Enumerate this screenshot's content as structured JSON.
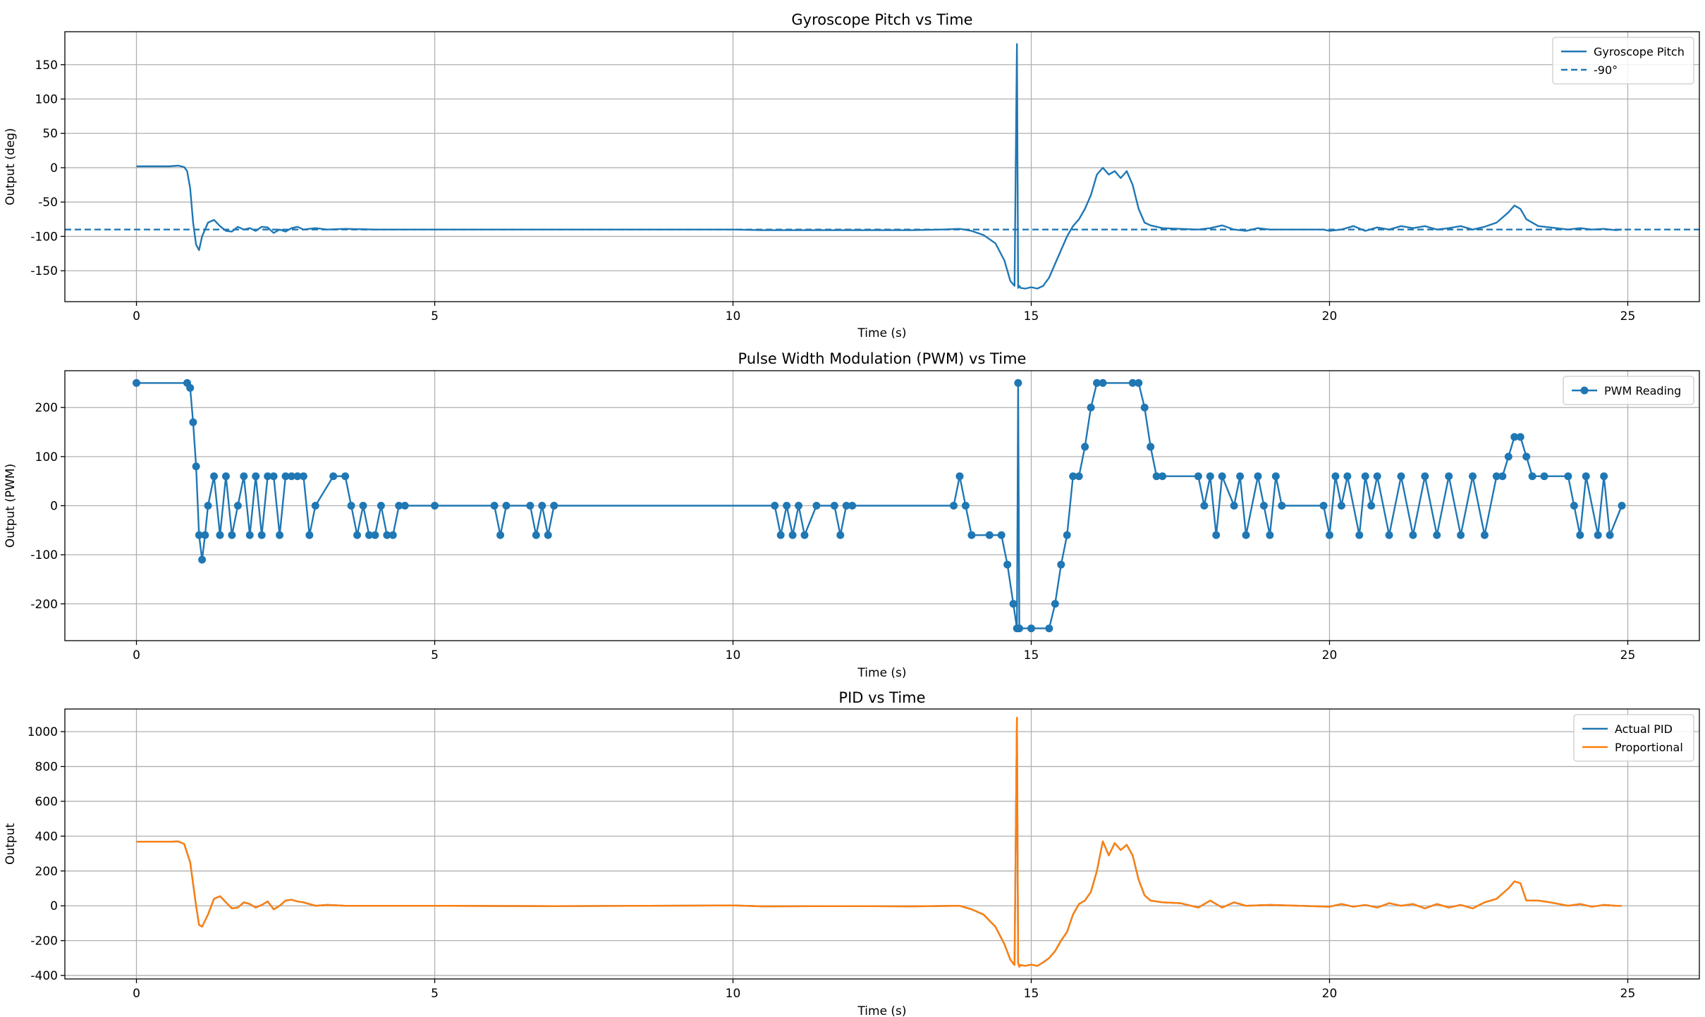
{
  "figure": {
    "background": "#ffffff"
  },
  "chart_data": [
    {
      "type": "line",
      "title": "Gyroscope Pitch vs Time",
      "xlabel": "Time (s)",
      "ylabel": "Output (deg)",
      "xlim": [
        -1.2,
        26.2
      ],
      "ylim": [
        -195,
        198
      ],
      "xticks": [
        0,
        5,
        10,
        15,
        20,
        25
      ],
      "yticks": [
        -150,
        -100,
        -50,
        0,
        50,
        100,
        150
      ],
      "grid": true,
      "legend_position": "top-right",
      "series": [
        {
          "name": "Gyroscope Pitch",
          "color": "#1f77b4",
          "style": "solid",
          "x": [
            0.0,
            0.3,
            0.55,
            0.7,
            0.8,
            0.85,
            0.9,
            0.95,
            1.0,
            1.05,
            1.1,
            1.2,
            1.3,
            1.4,
            1.5,
            1.6,
            1.7,
            1.8,
            1.9,
            2.0,
            2.1,
            2.2,
            2.3,
            2.4,
            2.5,
            2.6,
            2.7,
            2.8,
            3.0,
            3.2,
            3.5,
            4.0,
            5.0,
            6.0,
            7.0,
            8.0,
            9.0,
            10.0,
            10.5,
            11.0,
            12.0,
            13.0,
            13.5,
            13.8,
            14.0,
            14.2,
            14.4,
            14.55,
            14.65,
            14.72,
            14.76,
            14.78,
            14.8,
            14.82,
            14.9,
            15.0,
            15.1,
            15.2,
            15.3,
            15.4,
            15.5,
            15.6,
            15.7,
            15.8,
            15.9,
            16.0,
            16.1,
            16.2,
            16.3,
            16.4,
            16.5,
            16.6,
            16.7,
            16.8,
            16.9,
            17.0,
            17.2,
            17.5,
            17.8,
            18.0,
            18.2,
            18.4,
            18.6,
            18.8,
            19.0,
            19.5,
            19.9,
            20.0,
            20.2,
            20.4,
            20.6,
            20.8,
            21.0,
            21.2,
            21.4,
            21.6,
            21.8,
            22.0,
            22.2,
            22.4,
            22.6,
            22.8,
            23.0,
            23.1,
            23.2,
            23.3,
            23.5,
            23.7,
            24.0,
            24.2,
            24.4,
            24.6,
            24.8,
            24.9
          ],
          "values": [
            2,
            2,
            2,
            3,
            1,
            -5,
            -30,
            -80,
            -112,
            -120,
            -100,
            -80,
            -76,
            -85,
            -92,
            -93,
            -86,
            -90,
            -88,
            -92,
            -86,
            -87,
            -95,
            -90,
            -93,
            -88,
            -86,
            -90,
            -88,
            -90,
            -89,
            -90,
            -90,
            -90,
            -90,
            -90,
            -90,
            -90,
            -91,
            -91,
            -91,
            -91,
            -90,
            -89,
            -92,
            -98,
            -110,
            -135,
            -165,
            -172,
            180,
            -175,
            -172,
            -175,
            -176,
            -174,
            -176,
            -172,
            -160,
            -140,
            -120,
            -100,
            -85,
            -75,
            -60,
            -40,
            -10,
            0,
            -10,
            -5,
            -15,
            -5,
            -25,
            -60,
            -80,
            -84,
            -88,
            -89,
            -90,
            -88,
            -84,
            -90,
            -92,
            -88,
            -90,
            -90,
            -90,
            -92,
            -90,
            -85,
            -92,
            -87,
            -90,
            -85,
            -88,
            -85,
            -90,
            -88,
            -85,
            -90,
            -86,
            -80,
            -65,
            -55,
            -60,
            -75,
            -85,
            -87,
            -90,
            -88,
            -90,
            -89,
            -91,
            -90
          ]
        },
        {
          "name": "-90°",
          "color": "#1f77b4",
          "style": "dashed",
          "x": [
            -1.2,
            26.2
          ],
          "values": [
            -90,
            -90
          ]
        }
      ]
    },
    {
      "type": "line",
      "title": "Pulse Width Modulation (PWM) vs Time",
      "xlabel": "Time (s)",
      "ylabel": "Output (PWM)",
      "xlim": [
        -1.2,
        26.2
      ],
      "ylim": [
        -275,
        275
      ],
      "xticks": [
        0,
        5,
        10,
        15,
        20,
        25
      ],
      "yticks": [
        -200,
        -100,
        0,
        100,
        200
      ],
      "grid": true,
      "legend_position": "top-right",
      "series": [
        {
          "name": "PWM Reading",
          "color": "#1f77b4",
          "marker": "circle",
          "x": [
            0.0,
            0.85,
            0.9,
            0.95,
            1.0,
            1.05,
            1.1,
            1.15,
            1.2,
            1.3,
            1.4,
            1.5,
            1.6,
            1.7,
            1.8,
            1.9,
            2.0,
            2.1,
            2.2,
            2.3,
            2.4,
            2.5,
            2.6,
            2.7,
            2.8,
            2.9,
            3.0,
            3.3,
            3.5,
            3.6,
            3.7,
            3.8,
            3.9,
            4.0,
            4.1,
            4.2,
            4.3,
            4.4,
            4.5,
            5.0,
            6.0,
            6.1,
            6.2,
            6.6,
            6.7,
            6.8,
            6.9,
            7.0,
            10.7,
            10.8,
            10.9,
            11.0,
            11.1,
            11.2,
            11.4,
            11.7,
            11.8,
            11.9,
            12.0,
            13.7,
            13.8,
            13.9,
            14.0,
            14.3,
            14.5,
            14.6,
            14.7,
            14.76,
            14.78,
            14.8,
            15.0,
            15.3,
            15.4,
            15.5,
            15.6,
            15.7,
            15.8,
            15.9,
            16.0,
            16.1,
            16.2,
            16.7,
            16.8,
            16.9,
            17.0,
            17.1,
            17.2,
            17.8,
            17.9,
            18.0,
            18.1,
            18.2,
            18.4,
            18.5,
            18.6,
            18.8,
            18.9,
            19.0,
            19.1,
            19.2,
            19.9,
            20.0,
            20.1,
            20.2,
            20.3,
            20.5,
            20.6,
            20.7,
            20.8,
            21.0,
            21.2,
            21.4,
            21.6,
            21.8,
            22.0,
            22.2,
            22.4,
            22.6,
            22.8,
            22.9,
            23.0,
            23.1,
            23.2,
            23.3,
            23.4,
            23.6,
            24.0,
            24.1,
            24.2,
            24.3,
            24.5,
            24.6,
            24.7,
            24.9
          ],
          "values": [
            250,
            250,
            240,
            170,
            80,
            -60,
            -110,
            -60,
            0,
            60,
            -60,
            60,
            -60,
            0,
            60,
            -60,
            60,
            -60,
            60,
            60,
            -60,
            60,
            60,
            60,
            60,
            -60,
            0,
            60,
            60,
            0,
            -60,
            0,
            -60,
            -60,
            0,
            -60,
            -60,
            0,
            0,
            0,
            0,
            -60,
            0,
            0,
            -60,
            0,
            -60,
            0,
            0,
            -60,
            0,
            -60,
            0,
            -60,
            0,
            0,
            -60,
            0,
            0,
            0,
            60,
            0,
            -60,
            -60,
            -60,
            -120,
            -200,
            -250,
            250,
            -250,
            -250,
            -250,
            -200,
            -120,
            -60,
            60,
            60,
            120,
            200,
            250,
            250,
            250,
            250,
            200,
            120,
            60,
            60,
            60,
            0,
            60,
            -60,
            60,
            0,
            60,
            -60,
            60,
            0,
            -60,
            60,
            0,
            0,
            -60,
            60,
            0,
            60,
            -60,
            60,
            0,
            60,
            -60,
            60,
            -60,
            60,
            -60,
            60,
            -60,
            60,
            -60,
            60,
            60,
            100,
            140,
            140,
            100,
            60,
            60,
            60,
            0,
            -60,
            60,
            -60,
            60,
            -60,
            0
          ]
        }
      ]
    },
    {
      "type": "line",
      "title": "PID vs Time",
      "xlabel": "Time (s)",
      "ylabel": "Output",
      "xlim": [
        -1.2,
        26.2
      ],
      "ylim": [
        -420,
        1130
      ],
      "xticks": [
        0,
        5,
        10,
        15,
        20,
        25
      ],
      "yticks": [
        -400,
        -200,
        0,
        200,
        400,
        600,
        800,
        1000
      ],
      "grid": true,
      "legend_position": "top-right",
      "series": [
        {
          "name": "Actual PID",
          "color": "#1f77b4",
          "x": [
            0.0,
            0.55,
            0.7,
            0.8,
            0.9,
            1.0,
            1.05,
            1.1,
            1.2,
            1.3,
            1.4,
            1.5,
            1.6,
            1.7,
            1.8,
            1.9,
            2.0,
            2.1,
            2.2,
            2.3,
            2.4,
            2.5,
            2.6,
            2.7,
            2.8,
            3.0,
            3.2,
            3.5,
            4.0,
            5.0,
            7.0,
            10.0,
            10.5,
            12.0,
            13.0,
            13.8,
            14.0,
            14.2,
            14.4,
            14.55,
            14.65,
            14.72,
            14.76,
            14.78,
            14.8,
            14.82,
            14.9,
            15.0,
            15.1,
            15.2,
            15.3,
            15.4,
            15.5,
            15.6,
            15.7,
            15.8,
            15.9,
            16.0,
            16.1,
            16.2,
            16.3,
            16.4,
            16.5,
            16.6,
            16.7,
            16.8,
            16.9,
            17.0,
            17.2,
            17.5,
            17.8,
            18.0,
            18.2,
            18.4,
            18.6,
            19.0,
            19.5,
            20.0,
            20.2,
            20.4,
            20.6,
            20.8,
            21.0,
            21.2,
            21.4,
            21.6,
            21.8,
            22.0,
            22.2,
            22.4,
            22.6,
            22.8,
            23.0,
            23.1,
            23.2,
            23.3,
            23.5,
            23.7,
            24.0,
            24.2,
            24.4,
            24.6,
            24.8,
            24.9
          ],
          "values": [
            368,
            368,
            370,
            355,
            250,
            0,
            -110,
            -120,
            -50,
            40,
            55,
            20,
            -15,
            -10,
            20,
            10,
            -10,
            5,
            25,
            -20,
            0,
            30,
            35,
            25,
            20,
            0,
            5,
            0,
            0,
            0,
            -2,
            2,
            -3,
            -2,
            -3,
            0,
            -20,
            -50,
            -120,
            -220,
            -310,
            -340,
            1080,
            -330,
            -350,
            -340,
            -345,
            -338,
            -345,
            -325,
            -300,
            -260,
            -200,
            -150,
            -50,
            10,
            30,
            80,
            200,
            370,
            290,
            360,
            320,
            350,
            290,
            150,
            60,
            30,
            20,
            15,
            -10,
            30,
            -10,
            20,
            0,
            5,
            0,
            -5,
            10,
            -5,
            5,
            -10,
            15,
            0,
            10,
            -15,
            10,
            -10,
            5,
            -15,
            20,
            40,
            100,
            140,
            130,
            30,
            30,
            20,
            0,
            10,
            -5,
            5,
            0,
            0
          ]
        },
        {
          "name": "Proportional",
          "color": "#ff7f0e",
          "x": [
            0.0,
            0.55,
            0.7,
            0.8,
            0.9,
            1.0,
            1.05,
            1.1,
            1.2,
            1.3,
            1.4,
            1.5,
            1.6,
            1.7,
            1.8,
            1.9,
            2.0,
            2.1,
            2.2,
            2.3,
            2.4,
            2.5,
            2.6,
            2.7,
            2.8,
            3.0,
            3.2,
            3.5,
            4.0,
            5.0,
            7.0,
            10.0,
            10.5,
            12.0,
            13.0,
            13.8,
            14.0,
            14.2,
            14.4,
            14.55,
            14.65,
            14.72,
            14.76,
            14.78,
            14.8,
            14.82,
            14.9,
            15.0,
            15.1,
            15.2,
            15.3,
            15.4,
            15.5,
            15.6,
            15.7,
            15.8,
            15.9,
            16.0,
            16.1,
            16.2,
            16.3,
            16.4,
            16.5,
            16.6,
            16.7,
            16.8,
            16.9,
            17.0,
            17.2,
            17.5,
            17.8,
            18.0,
            18.2,
            18.4,
            18.6,
            19.0,
            19.5,
            20.0,
            20.2,
            20.4,
            20.6,
            20.8,
            21.0,
            21.2,
            21.4,
            21.6,
            21.8,
            22.0,
            22.2,
            22.4,
            22.6,
            22.8,
            23.0,
            23.1,
            23.2,
            23.3,
            23.5,
            23.7,
            24.0,
            24.2,
            24.4,
            24.6,
            24.8,
            24.9
          ],
          "values": [
            368,
            368,
            370,
            355,
            250,
            0,
            -110,
            -120,
            -50,
            40,
            55,
            20,
            -15,
            -10,
            20,
            10,
            -10,
            5,
            25,
            -20,
            0,
            30,
            35,
            25,
            20,
            0,
            5,
            0,
            0,
            0,
            -2,
            2,
            -3,
            -2,
            -3,
            0,
            -20,
            -50,
            -120,
            -220,
            -310,
            -340,
            1080,
            -330,
            -350,
            -340,
            -345,
            -338,
            -345,
            -325,
            -300,
            -260,
            -200,
            -150,
            -50,
            10,
            30,
            80,
            200,
            370,
            290,
            360,
            320,
            350,
            290,
            150,
            60,
            30,
            20,
            15,
            -10,
            30,
            -10,
            20,
            0,
            5,
            0,
            -5,
            10,
            -5,
            5,
            -10,
            15,
            0,
            10,
            -15,
            10,
            -10,
            5,
            -15,
            20,
            40,
            100,
            140,
            130,
            30,
            30,
            20,
            0,
            10,
            -5,
            5,
            0,
            0
          ]
        }
      ]
    }
  ]
}
